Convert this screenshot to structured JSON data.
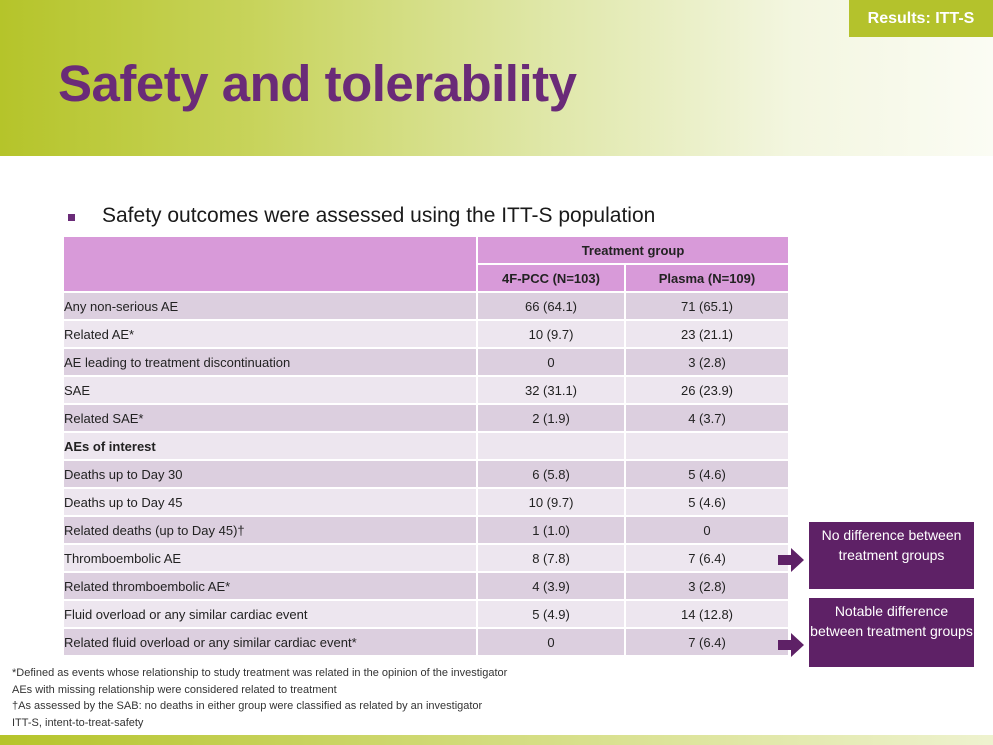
{
  "badge": "Results: ITT-S",
  "title": "Safety and tolerability",
  "bullet": "Safety outcomes were assessed using the ITT-S population",
  "table": {
    "group_header": "Treatment group",
    "col1": "4F-PCC (N=103)",
    "col2": "Plasma (N=109)",
    "rows": [
      {
        "label": "Any non-serious AE",
        "v1": "66 (64.1)",
        "v2": "71 (65.1)"
      },
      {
        "label": "Related AE*",
        "v1": "10 (9.7)",
        "v2": "23 (21.1)"
      },
      {
        "label": "AE leading to treatment discontinuation",
        "v1": "0",
        "v2": "3 (2.8)"
      },
      {
        "label": "SAE",
        "v1": "32 (31.1)",
        "v2": "26 (23.9)"
      },
      {
        "label": "Related SAE*",
        "v1": "2 (1.9)",
        "v2": "4 (3.7)"
      },
      {
        "label": "AEs of interest",
        "v1": "",
        "v2": ""
      },
      {
        "label": "Deaths up to Day 30",
        "v1": "6 (5.8)",
        "v2": "5 (4.6)"
      },
      {
        "label": "Deaths up to Day 45",
        "v1": "10 (9.7)",
        "v2": "5 (4.6)"
      },
      {
        "label": "Related deaths (up to Day 45)†",
        "v1": "1 (1.0)",
        "v2": "0"
      },
      {
        "label": "Thromboembolic AE",
        "v1": "8 (7.8)",
        "v2": "7 (6.4)"
      },
      {
        "label": "Related thromboembolic AE*",
        "v1": "4 (3.9)",
        "v2": "3 (2.8)"
      },
      {
        "label": "Fluid overload or any similar cardiac event",
        "v1": "5 (4.9)",
        "v2": "14 (12.8)"
      },
      {
        "label": "Related fluid overload or any similar cardiac event*",
        "v1": "0",
        "v2": "7 (6.4)"
      }
    ]
  },
  "callouts": {
    "no_difference": "No difference between treatment groups",
    "notable_difference": "Notable difference between treatment groups"
  },
  "footnotes": [
    "*Defined as events whose relationship to study treatment  was related in the opinion of the investigator",
    "AEs with missing relationship were considered related to treatment",
    "†As assessed by the SAB: no deaths in either group were classified as related by an investigator",
    "ITT-S, intent-to-treat-safety"
  ],
  "colors": {
    "accent_purple": "#6a2b78",
    "header_green": "#b4c22c",
    "table_header": "#d89ad9",
    "row_dark": "#dccfdf",
    "row_light": "#ede6ef",
    "callout_bg": "#5e2166"
  },
  "icons": [
    "square-bullet-icon",
    "arrow-right-icon"
  ]
}
